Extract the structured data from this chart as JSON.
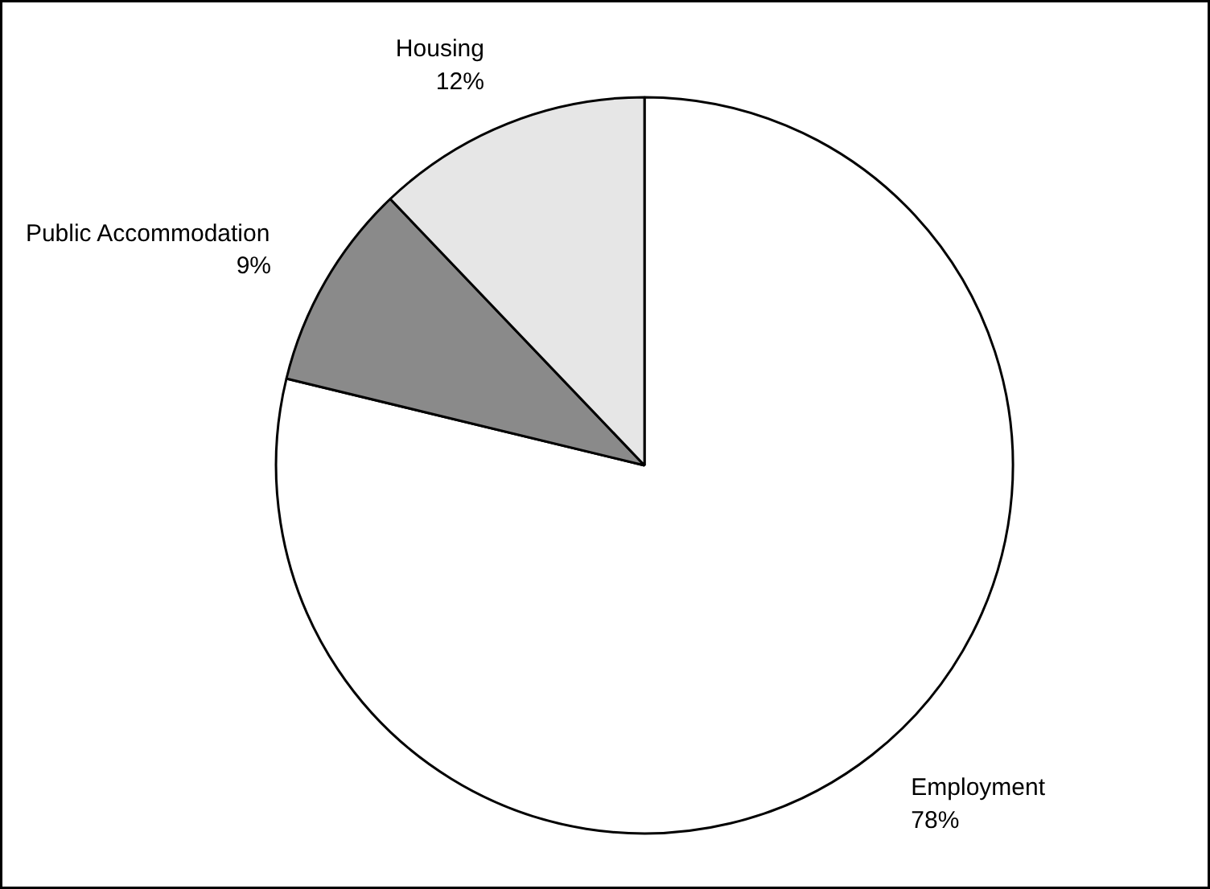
{
  "chart_data": {
    "type": "pie",
    "categories": [
      "Employment",
      "Public Accommodation",
      "Housing"
    ],
    "values": [
      78,
      9,
      12
    ],
    "value_labels": [
      "78%",
      "9%",
      "12%"
    ],
    "colors": [
      "#ffffff",
      "#8a8a8a",
      "#e6e6e6"
    ]
  }
}
